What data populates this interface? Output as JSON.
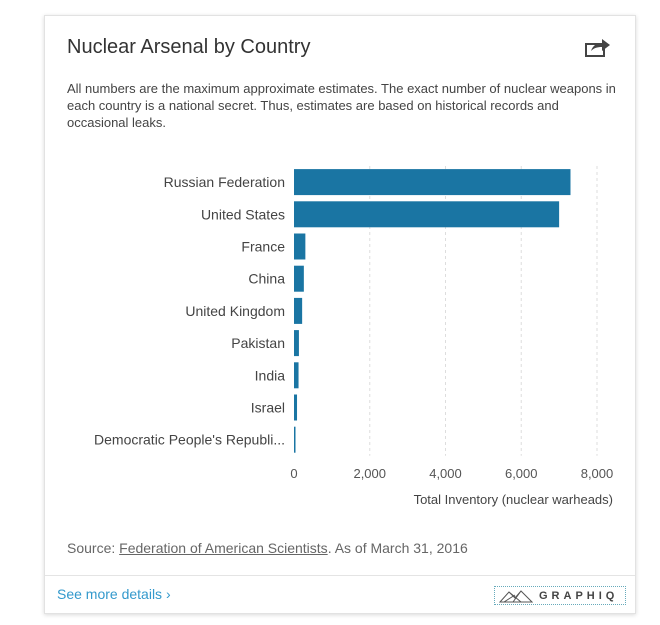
{
  "card": {
    "title": "Nuclear Arsenal by Country",
    "share_icon": "share-icon",
    "description": "All numbers are the maximum approximate estimates. The exact number of nuclear weapons in each country is a national secret. Thus, estimates are based on historical records and occasional leaks.",
    "source_prefix": "Source: ",
    "source_link": "Federation of American Scientists",
    "source_suffix": ". As of March 31, 2016",
    "see_more": "See more details ›",
    "logo_text": "GRAPHIQ"
  },
  "chart_data": {
    "type": "bar",
    "orientation": "horizontal",
    "title": "Nuclear Arsenal by Country",
    "categories": [
      "Russian Federation",
      "United States",
      "France",
      "China",
      "United Kingdom",
      "Pakistan",
      "India",
      "Israel",
      "Democratic People's Republi..."
    ],
    "values": [
      7300,
      7000,
      300,
      260,
      215,
      130,
      120,
      80,
      10
    ],
    "xlabel": "Total Inventory (nuclear warheads)",
    "ylabel": "",
    "xlim": [
      0,
      8000
    ],
    "xticks": [
      "0",
      "2,000",
      "4,000",
      "6,000",
      "8,000"
    ],
    "tick_values": [
      0,
      2000,
      4000,
      6000,
      8000
    ],
    "grid": true,
    "bar_color": "#1a75a3"
  }
}
